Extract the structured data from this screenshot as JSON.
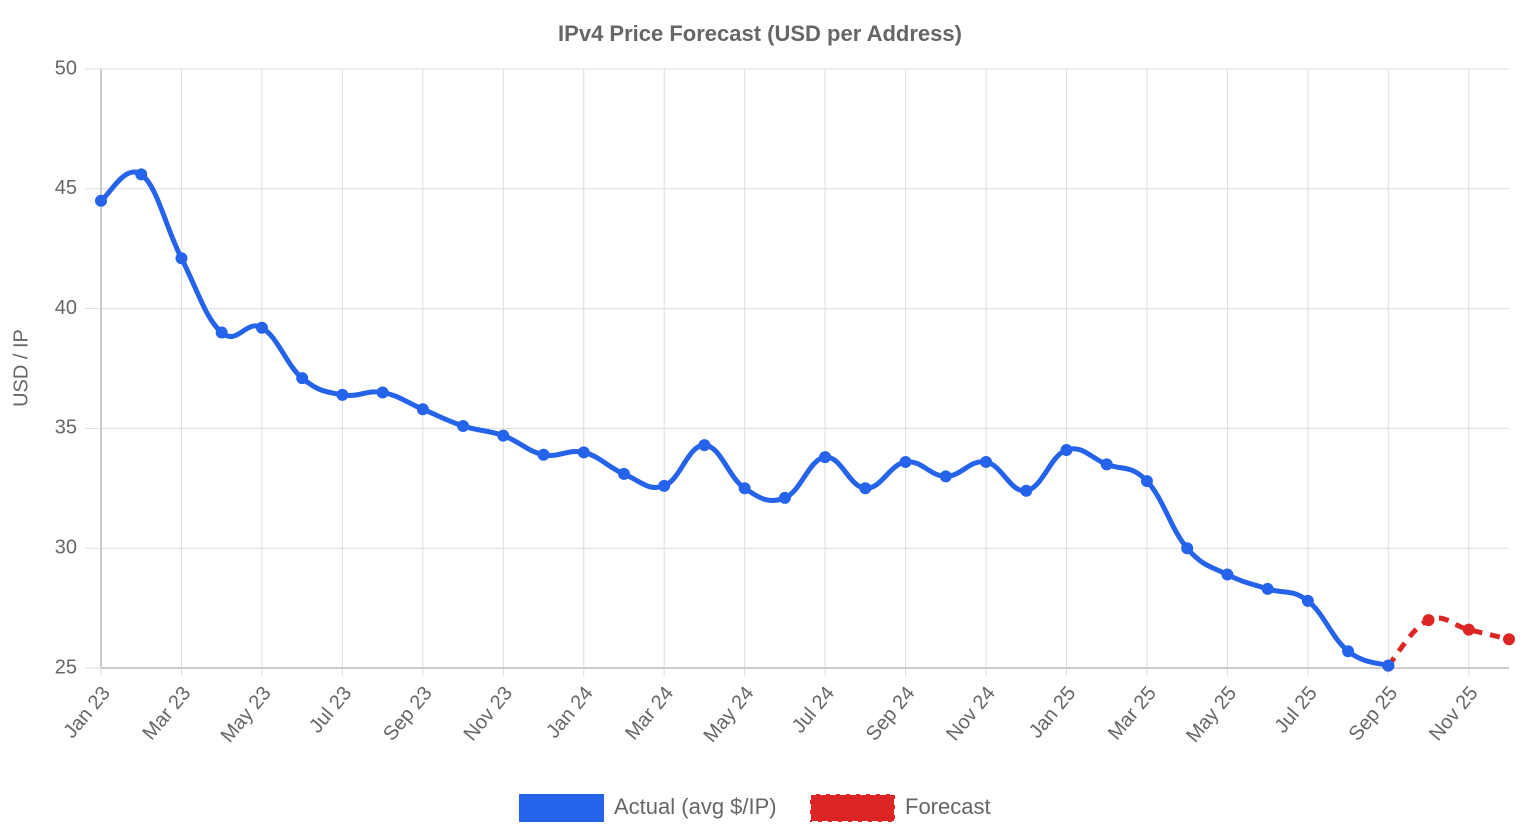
{
  "chart_data": {
    "type": "line",
    "title": "IPv4 Price Forecast (USD per Address)",
    "y_label": "USD / IP",
    "categories": [
      "Jan 23",
      null,
      "Mar 23",
      null,
      "May 23",
      null,
      "Jul 23",
      null,
      "Sep 23",
      null,
      "Nov 23",
      null,
      "Jan 24",
      null,
      "Mar 24",
      null,
      "May 24",
      null,
      "Jul 24",
      null,
      "Sep 24",
      null,
      "Nov 24",
      null,
      "Jan 25",
      null,
      "Mar 25",
      null,
      "May 25",
      null,
      "Jul 25",
      null,
      "Sep 25",
      null,
      "Nov 25",
      null
    ],
    "series": [
      {
        "name": "Actual (avg $/IP)",
        "color": "#2563eb",
        "dashed": false,
        "values": [
          44.5,
          45.6,
          42.1,
          39.0,
          39.2,
          37.1,
          36.4,
          36.5,
          35.8,
          35.1,
          34.7,
          33.9,
          34.0,
          33.1,
          32.6,
          34.3,
          32.5,
          32.1,
          33.8,
          32.5,
          33.6,
          33.0,
          33.6,
          32.4,
          34.1,
          33.5,
          32.8,
          30.0,
          28.9,
          28.3,
          27.8,
          25.7,
          25.1,
          null,
          null,
          null
        ]
      },
      {
        "name": "Forecast",
        "color": "#dc2626",
        "dashed": true,
        "values": [
          null,
          null,
          null,
          null,
          null,
          null,
          null,
          null,
          null,
          null,
          null,
          null,
          null,
          null,
          null,
          null,
          null,
          null,
          null,
          null,
          null,
          null,
          null,
          null,
          null,
          null,
          null,
          null,
          null,
          null,
          null,
          null,
          25.1,
          27.0,
          26.6,
          26.2
        ]
      }
    ],
    "ylim": [
      25,
      50
    ],
    "yticks": [
      25,
      30,
      35,
      40,
      45,
      50
    ],
    "grid": true,
    "legend": "bottom"
  }
}
